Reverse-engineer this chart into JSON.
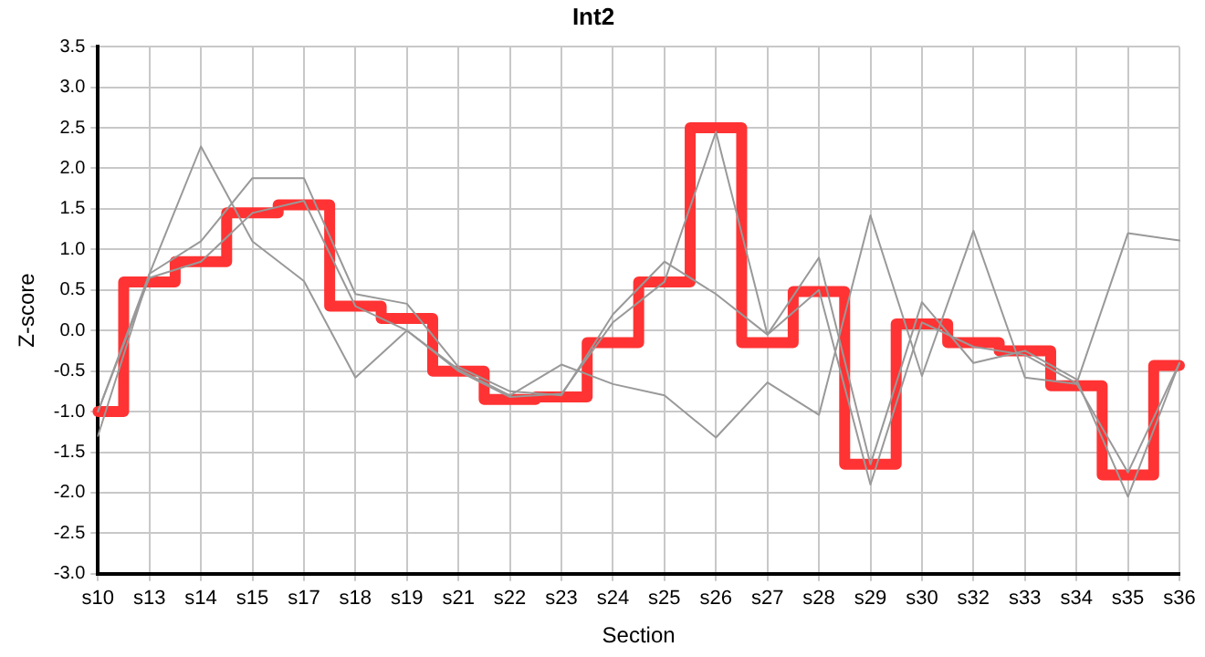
{
  "chart_data": {
    "type": "line",
    "title": "Int2",
    "xlabel": "Section",
    "ylabel": "Z-score",
    "categories": [
      "s10",
      "s13",
      "s14",
      "s15",
      "s17",
      "s18",
      "s19",
      "s21",
      "s22",
      "s23",
      "s24",
      "s25",
      "s26",
      "s27",
      "s28",
      "s29",
      "s30",
      "s32",
      "s33",
      "s34",
      "s35",
      "s36"
    ],
    "series": [
      {
        "type": "line",
        "color": "#999999",
        "values": [
          -1.3,
          0.7,
          2.27,
          1.1,
          0.61,
          -0.58,
          0.0,
          -0.48,
          -0.8,
          -0.42,
          -0.66,
          -0.8,
          -1.32,
          -0.64,
          -1.04,
          1.42,
          -0.56,
          1.23,
          -0.58,
          -0.66,
          1.2,
          1.11
        ]
      },
      {
        "type": "line",
        "color": "#999999",
        "values": [
          -1.0,
          0.7,
          1.1,
          1.88,
          1.88,
          0.45,
          0.33,
          -0.45,
          -0.75,
          -0.8,
          0.2,
          0.85,
          0.45,
          -0.05,
          0.9,
          -1.65,
          0.35,
          -0.4,
          -0.25,
          -0.6,
          -2.05,
          -0.4
        ]
      },
      {
        "type": "line",
        "color": "#999999",
        "values": [
          -1.0,
          0.65,
          0.85,
          1.45,
          1.6,
          0.3,
          0.0,
          -0.5,
          -0.82,
          -0.78,
          0.1,
          0.6,
          2.45,
          -0.05,
          0.5,
          -1.9,
          0.1,
          -0.2,
          -0.3,
          -0.65,
          -1.75,
          -0.4
        ]
      },
      {
        "type": "step",
        "color": "#ff3333",
        "values": [
          -1.0,
          0.6,
          0.85,
          1.45,
          1.55,
          0.3,
          0.15,
          -0.5,
          -0.85,
          -0.82,
          -0.15,
          0.6,
          2.5,
          -0.15,
          0.48,
          -1.65,
          0.08,
          -0.15,
          -0.25,
          -0.68,
          -1.78,
          -0.43
        ]
      }
    ],
    "ylim": [
      -3,
      3.5
    ],
    "yticks": [
      {
        "value": -3,
        "label": "-3.0"
      },
      -2.5,
      {
        "value": -2,
        "label": "-2.0"
      },
      -1.5,
      {
        "value": -1,
        "label": "-1.0"
      },
      -0.5,
      {
        "value": 0,
        "label": "0.0"
      },
      0.5,
      {
        "value": 1,
        "label": "1.0"
      },
      1.5,
      {
        "value": 2,
        "label": "2.0"
      },
      2.5,
      {
        "value": 3,
        "label": "3.0"
      },
      3.5
    ],
    "grid": true,
    "legend": false,
    "marker": "none"
  }
}
